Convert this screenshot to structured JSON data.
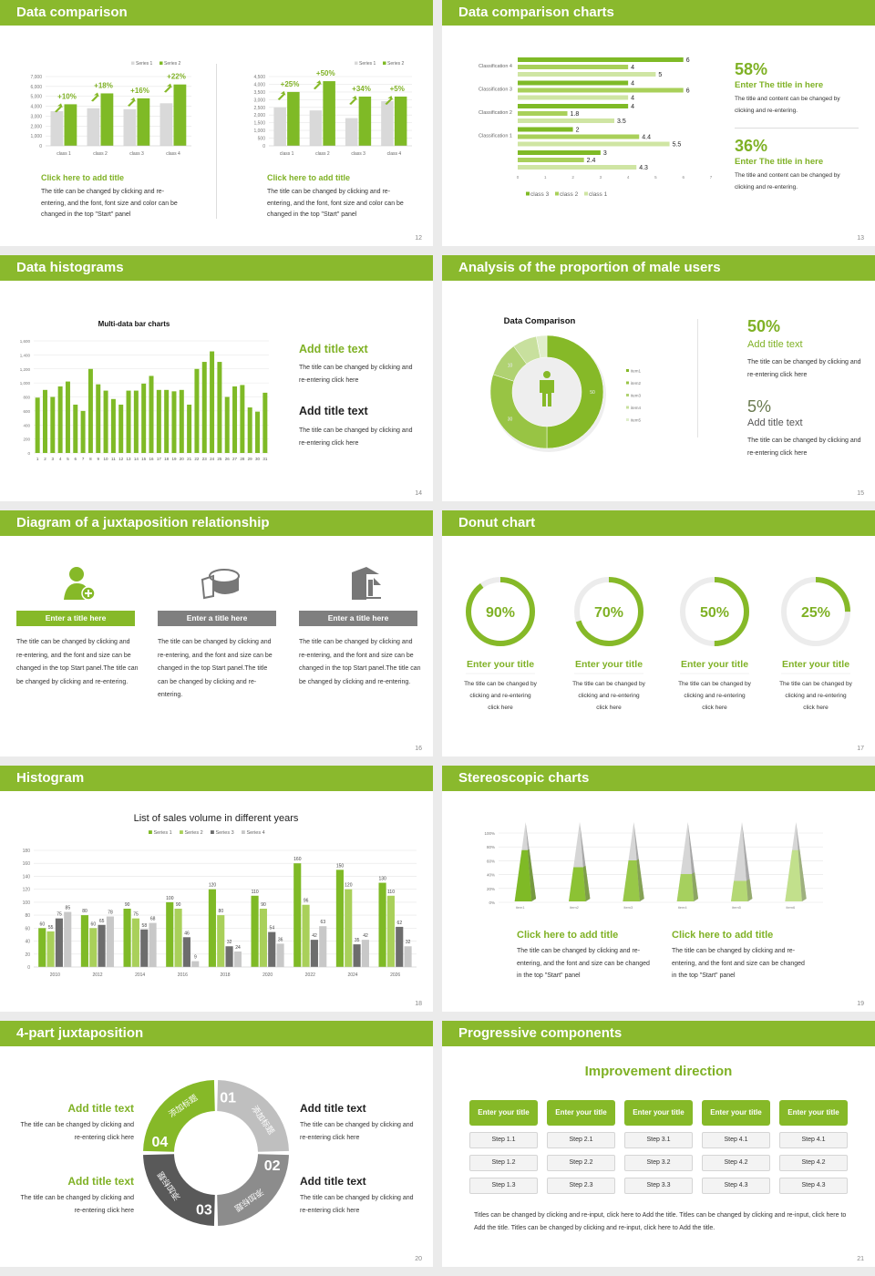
{
  "theme": {
    "green": "#86b928",
    "light_gray": "#d9d9d9",
    "mid_gray": "#8c8c8c",
    "dark_gray": "#595959"
  },
  "s12": {
    "title": "Data comparison",
    "page": "12",
    "blocks": [
      {
        "title": "Click here to add title",
        "body": "The title can be changed by clicking and re-entering, and the font, font size and color can be changed in the top \"Start\" panel"
      },
      {
        "title": "Click here to add title",
        "body": "The title can be changed by clicking and re-entering, and the font, font size and color can be changed in the top \"Start\" panel"
      }
    ]
  },
  "s13": {
    "title": "Data comparison charts",
    "page": "13",
    "stats": [
      {
        "value": "58%",
        "title": "Enter The title in here",
        "body": "The title and content can be changed by clicking and re-entering."
      },
      {
        "value": "36%",
        "title": "Enter The title in here",
        "body": "The title and content can be changed by clicking and re-entering."
      }
    ]
  },
  "s14": {
    "title": "Data histograms",
    "page": "14",
    "blocks": [
      {
        "title": "Add title text",
        "body": "The title can be changed by clicking and re-entering click here"
      },
      {
        "title": "Add title text",
        "body": "The title can be changed by clicking and re-entering click here"
      }
    ]
  },
  "s15": {
    "title": "Analysis of the proportion of male users",
    "page": "15",
    "center_icon": "person-icon",
    "stats": [
      {
        "value": "50%",
        "title": "Add title text",
        "body": "The title can be changed by clicking and re-entering click here"
      },
      {
        "value": "5%",
        "title": "Add title text",
        "body": "The title can be changed by clicking and re-entering click here"
      }
    ]
  },
  "s16": {
    "title": "Diagram of a juxtaposition relationship",
    "page": "16",
    "columns": [
      {
        "icon": "user-add-icon",
        "label": "Enter a title here",
        "body": "The title can be changed by clicking and re-entering, and the font and size can be changed in the top Start panel.The title can be changed by clicking and re-entering."
      },
      {
        "icon": "pie-chart-icon",
        "label": "Enter a title here",
        "body": "The title can be changed by clicking and re-entering, and the font and size can be changed in the top Start panel.The title can be changed by clicking and re-entering."
      },
      {
        "icon": "building-chart-icon",
        "label": "Enter a title here",
        "body": "The title can be changed by clicking and re-entering, and the font and size can be changed in the top Start panel.The title can be changed by clicking and re-entering."
      }
    ]
  },
  "s17": {
    "title": "Donut chart",
    "page": "17",
    "rings": [
      {
        "percent": 90,
        "label": "90%",
        "title": "Enter your title",
        "body": "The title can be changed by clicking and re-entering click here"
      },
      {
        "percent": 70,
        "label": "70%",
        "title": "Enter your title",
        "body": "The title can be changed by clicking and re-entering click here"
      },
      {
        "percent": 50,
        "label": "50%",
        "title": "Enter your title",
        "body": "The title can be changed by clicking and re-entering click here"
      },
      {
        "percent": 25,
        "label": "25%",
        "title": "Enter your title",
        "body": "The title can be changed by clicking and re-entering click here"
      }
    ]
  },
  "s18": {
    "title": "Histogram",
    "page": "18"
  },
  "s19": {
    "title": "Stereoscopic charts",
    "page": "19",
    "blocks": [
      {
        "title": "Click here to add title",
        "body": "The title can be changed by clicking and re-entering, and the font and size can be changed in the top \"Start\" panel"
      },
      {
        "title": "Click here to add title",
        "body": "The title can be changed by clicking and re-entering, and the font and size can be changed in the top \"Start\" panel"
      }
    ]
  },
  "s20": {
    "title": "4-part juxtaposition",
    "page": "20",
    "segments": [
      {
        "number": "01",
        "label": "添加标题",
        "color": "#bfbfbf"
      },
      {
        "number": "02",
        "label": "添加标题",
        "color": "#8c8c8c"
      },
      {
        "number": "03",
        "label": "添加标题",
        "color": "#595959"
      },
      {
        "number": "04",
        "label": "添加标题",
        "color": "#86b928"
      }
    ],
    "blocks": [
      {
        "title": "Add title text",
        "body": "The title can be changed by clicking and re-entering click here"
      },
      {
        "title": "Add title text",
        "body": "The title can be changed by clicking and re-entering click here"
      },
      {
        "title": "Add title text",
        "body": "The title can be changed by clicking and re-entering click here"
      },
      {
        "title": "Add title text",
        "body": "The title can be changed by clicking and re-entering click here"
      }
    ]
  },
  "s21": {
    "title": "Progressive components",
    "page": "21",
    "heading": "Improvement direction",
    "columns": [
      {
        "title": "Enter your title",
        "steps": [
          "Step 1.1",
          "Step 1.2",
          "Step 1.3"
        ]
      },
      {
        "title": "Enter your title",
        "steps": [
          "Step 2.1",
          "Step 2.2",
          "Step 2.3"
        ]
      },
      {
        "title": "Enter your title",
        "steps": [
          "Step 3.1",
          "Step 3.2",
          "Step 3.3"
        ]
      },
      {
        "title": "Enter your title",
        "steps": [
          "Step 4.1",
          "Step 4.2",
          "Step 4.3"
        ]
      },
      {
        "title": "Enter your title",
        "steps": [
          "Step 4.1",
          "Step 4.2",
          "Step 4.3"
        ]
      }
    ],
    "body": "Titles can be changed by clicking and re-input, click here to Add the title. Titles can be changed by clicking and re-input, click here to Add the title. Titles can be changed by clicking and re-input, click here to Add the title."
  },
  "chart_data": [
    {
      "type": "bar",
      "categories": [
        "class 1",
        "class 2",
        "class 3",
        "class 4"
      ],
      "series": [
        {
          "name": "Series 1",
          "values": [
            3500,
            3800,
            3700,
            4300
          ],
          "color": "#d9d9d9"
        },
        {
          "name": "Series 2",
          "values": [
            4200,
            5300,
            4800,
            6200
          ],
          "color": "#7fba26"
        }
      ],
      "ylim": [
        0,
        7000
      ],
      "yticks": [
        "0",
        "1,000",
        "2,000",
        "3,000",
        "4,000",
        "5,000",
        "6,000",
        "7,000"
      ],
      "annotations": [
        "+10%",
        "+18%",
        "+16%",
        "+22%"
      ],
      "legend": "top-right",
      "grid": true
    },
    {
      "type": "bar",
      "categories": [
        "class 1",
        "class 2",
        "class 3",
        "class 4"
      ],
      "series": [
        {
          "name": "Series 1",
          "values": [
            2500,
            2300,
            1800,
            2900
          ],
          "color": "#d9d9d9"
        },
        {
          "name": "Series 2",
          "values": [
            3500,
            4200,
            3200,
            3200
          ],
          "color": "#7fba26"
        }
      ],
      "ylim": [
        0,
        4500
      ],
      "yticks": [
        "0",
        "500",
        "1,000",
        "1,500",
        "2,000",
        "2,500",
        "3,000",
        "3,500",
        "4,000",
        "4,500"
      ],
      "annotations": [
        "+25%",
        "+50%",
        "+34%",
        "+5%"
      ],
      "legend": "top-right",
      "grid": true
    },
    {
      "type": "bar",
      "orientation": "horizontal",
      "categories": [
        "Classification 4",
        "Classification 3",
        "Classification 2",
        "Classification 1",
        ""
      ],
      "series": [
        {
          "name": "class 3",
          "values": [
            6,
            4,
            4,
            2,
            3
          ],
          "color": "#7fba26"
        },
        {
          "name": "class 2",
          "values": [
            4,
            6,
            1.8,
            4.4,
            2.4
          ],
          "color": "#a9d05a"
        },
        {
          "name": "class 1",
          "values": [
            5,
            4,
            3.5,
            5.5,
            4.3
          ],
          "color": "#cfe5a3"
        }
      ],
      "value_labels": [
        [
          "6",
          "4",
          "4",
          "2",
          "3"
        ],
        [
          "4",
          "6",
          "1.8",
          "4.4",
          "2.4"
        ],
        [
          "5",
          "4",
          "3.5",
          "5.5",
          "4.3"
        ]
      ],
      "xlim": [
        0,
        7
      ],
      "xticks": [
        "0",
        "1",
        "2",
        "3",
        "4",
        "5",
        "6",
        "7"
      ],
      "legend": "bottom",
      "grid": false
    },
    {
      "type": "bar",
      "title": "Multi-data bar charts",
      "categories": [
        "1",
        "2",
        "3",
        "4",
        "5",
        "6",
        "7",
        "8",
        "9",
        "10",
        "11",
        "12",
        "13",
        "14",
        "15",
        "16",
        "17",
        "18",
        "19",
        "20",
        "21",
        "22",
        "23",
        "24",
        "25",
        "26",
        "27",
        "28",
        "29",
        "30",
        "31"
      ],
      "values": [
        790,
        900,
        800,
        950,
        1020,
        690,
        600,
        1200,
        980,
        890,
        770,
        690,
        890,
        890,
        990,
        1100,
        900,
        900,
        880,
        900,
        690,
        1200,
        1300,
        1450,
        1300,
        800,
        950,
        970,
        650,
        590,
        860
      ],
      "ylim": [
        0,
        1600
      ],
      "yticks": [
        "0",
        "200",
        "400",
        "600",
        "800",
        "1,000",
        "1,200",
        "1,400",
        "1,600"
      ],
      "color": "#7fba26",
      "grid": true
    },
    {
      "type": "pie",
      "donut": true,
      "title": "Data Comparison",
      "categories": [
        "item1",
        "item2",
        "item3",
        "item4",
        "item5"
      ],
      "values": [
        50,
        30,
        10,
        7,
        3
      ],
      "data_labels": [
        "50",
        "30",
        "10",
        "",
        ""
      ],
      "colors": [
        "#86b928",
        "#98c444",
        "#b0d272",
        "#c8e09e",
        "#e0eecb"
      ],
      "legend": "right"
    },
    {
      "type": "bar",
      "title": "List of sales volume in different years",
      "categories": [
        "2010",
        "2012",
        "2014",
        "2016",
        "2018",
        "2020",
        "2022",
        "2024",
        "2026"
      ],
      "series": [
        {
          "name": "Series 1",
          "values": [
            60,
            80,
            90,
            100,
            120,
            110,
            160,
            150,
            130
          ],
          "color": "#7fba26"
        },
        {
          "name": "Series 2",
          "values": [
            55,
            60,
            75,
            90,
            80,
            90,
            96,
            120,
            110
          ],
          "color": "#a9d05a"
        },
        {
          "name": "Series 3",
          "values": [
            75,
            65,
            58,
            46,
            32,
            54,
            42,
            35,
            62
          ],
          "color": "#6d6d6d"
        },
        {
          "name": "Series 4",
          "values": [
            85,
            78,
            68,
            9,
            24,
            36,
            63,
            42,
            32
          ],
          "color": "#c8c8c8"
        }
      ],
      "ylim": [
        0,
        180
      ],
      "yticks": [
        "0",
        "20",
        "40",
        "60",
        "80",
        "100",
        "120",
        "140",
        "160",
        "180"
      ],
      "legend": "top",
      "grid": true
    },
    {
      "type": "bar",
      "style": "3d-pyramid",
      "categories": [
        "item1",
        "item2",
        "item3",
        "item4",
        "item5",
        "item6"
      ],
      "values": [
        75,
        50,
        60,
        40,
        30,
        75
      ],
      "ylim": [
        0,
        100
      ],
      "yticks": [
        "0%",
        "20%",
        "40%",
        "60%",
        "80%",
        "100%"
      ],
      "colors": [
        "#7fba26",
        "#8cc234",
        "#98c848",
        "#a6d05e",
        "#b4d874",
        "#c2e08c"
      ],
      "grid": true
    }
  ]
}
